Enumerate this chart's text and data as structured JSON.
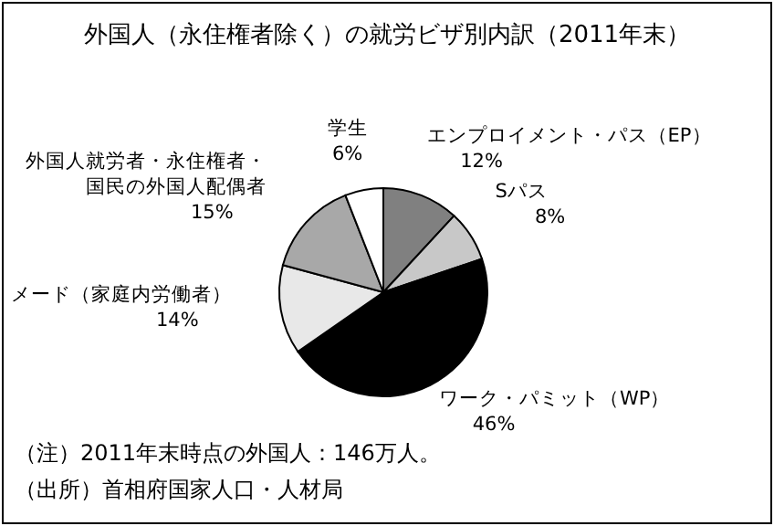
{
  "chart_data": {
    "type": "pie",
    "title": "外国人（永住権者除く）の就労ビザ別内訳（2011年末）",
    "categories": [
      "エンプロイメント・パス（EP）",
      "Sパス",
      "ワーク・パミット（WP）",
      "メード（家庭内労働者）",
      "外国人就労者・永住権者・国民の外国人配偶者",
      "学生"
    ],
    "values": [
      12,
      8,
      46,
      14,
      15,
      6
    ],
    "value_labels": [
      "12%",
      "8%",
      "46%",
      "14%",
      "15%",
      "6%"
    ],
    "colors": [
      "#808080",
      "#c8c8c8",
      "#000000",
      "#e8e8e8",
      "#a8a8a8",
      "#ffffff"
    ],
    "annotations": [
      "（注）2011年末時点の外国人：146万人。",
      "（出所）首相府国家人口・人材局"
    ]
  }
}
